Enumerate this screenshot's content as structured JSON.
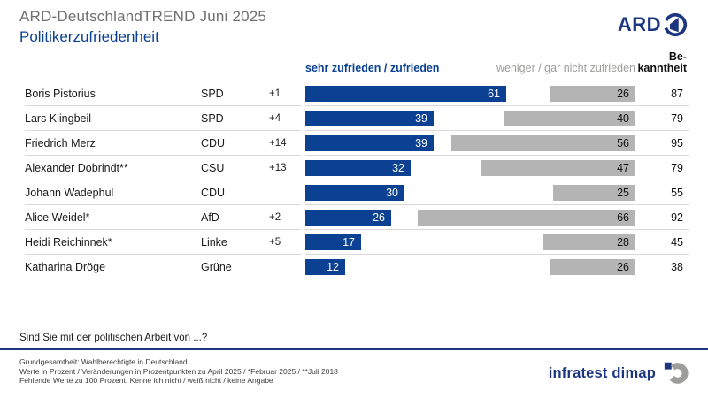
{
  "header": {
    "title": "ARD-DeutschlandTREND Juni 2025",
    "subtitle": "Politikerzufriedenheit",
    "logo_text": "ARD"
  },
  "columns": {
    "positive": "sehr zufrieden / zufrieden",
    "negative": "weniger / gar nicht zufrieden",
    "awareness_line1": "Be-",
    "awareness_line2": "kanntheit"
  },
  "rows": [
    {
      "name": "Boris Pistorius",
      "party": "SPD",
      "change": "+1",
      "positive": 61,
      "negative": 26,
      "awareness": 87
    },
    {
      "name": "Lars Klingbeil",
      "party": "SPD",
      "change": "+4",
      "positive": 39,
      "negative": 40,
      "awareness": 79
    },
    {
      "name": "Friedrich Merz",
      "party": "CDU",
      "change": "+14",
      "positive": 39,
      "negative": 56,
      "awareness": 95
    },
    {
      "name": "Alexander Dobrindt**",
      "party": "CSU",
      "change": "+13",
      "positive": 32,
      "negative": 47,
      "awareness": 79
    },
    {
      "name": "Johann Wadephul",
      "party": "CDU",
      "change": "",
      "positive": 30,
      "negative": 25,
      "awareness": 55
    },
    {
      "name": "Alice Weidel*",
      "party": "AfD",
      "change": "+2",
      "positive": 26,
      "negative": 66,
      "awareness": 92
    },
    {
      "name": "Heidi Reichinnek*",
      "party": "Linke",
      "change": "+5",
      "positive": 17,
      "negative": 28,
      "awareness": 45
    },
    {
      "name": "Katharina Dröge",
      "party": "Grüne",
      "change": "",
      "positive": 12,
      "negative": 26,
      "awareness": 38
    }
  ],
  "question": "Sind Sie mit der politischen Arbeit von ...?",
  "footer": {
    "line1": "Grundgesamtheit: Wahlberechtigte in Deutschland",
    "line2": "Werte in Prozent / Veränderungen in Prozentpunkten zu April 2025 / *Februar 2025 / **Juli 2018",
    "line3": "Fehlende Werte zu 100 Prozent: Kenne ich nicht / weiß nicht / keine Angabe",
    "brand": "infratest dimap"
  },
  "colors": {
    "positive_bar": "#0b4092",
    "negative_bar": "#b4b4b4",
    "navy": "#1c3680",
    "title_gray": "#6f6f6e",
    "gray_text": "#9d9d9c",
    "separator": "#dadada"
  },
  "chart_data": {
    "type": "bar",
    "orientation": "horizontal",
    "title": "Politikerzufriedenheit",
    "subtitle": "ARD-DeutschlandTREND Juni 2025",
    "categories": [
      "Boris Pistorius",
      "Lars Klingbeil",
      "Friedrich Merz",
      "Alexander Dobrindt**",
      "Johann Wadephul",
      "Alice Weidel*",
      "Heidi Reichinnek*",
      "Katharina Dröge"
    ],
    "parties": [
      "SPD",
      "SPD",
      "CDU",
      "CSU",
      "CDU",
      "AfD",
      "Linke",
      "Grüne"
    ],
    "changes": [
      "+1",
      "+4",
      "+14",
      "+13",
      "",
      "+2",
      "+5",
      ""
    ],
    "series": [
      {
        "name": "sehr zufrieden / zufrieden",
        "values": [
          61,
          39,
          39,
          32,
          30,
          26,
          17,
          12
        ]
      },
      {
        "name": "weniger / gar nicht zufrieden",
        "values": [
          26,
          40,
          56,
          47,
          25,
          66,
          28,
          26
        ]
      },
      {
        "name": "Bekanntheit",
        "values": [
          87,
          79,
          95,
          79,
          55,
          92,
          45,
          38
        ]
      }
    ],
    "xlim": [
      0,
      100
    ],
    "value_labels": "inside-right",
    "grid": false,
    "legend_position": "top"
  }
}
